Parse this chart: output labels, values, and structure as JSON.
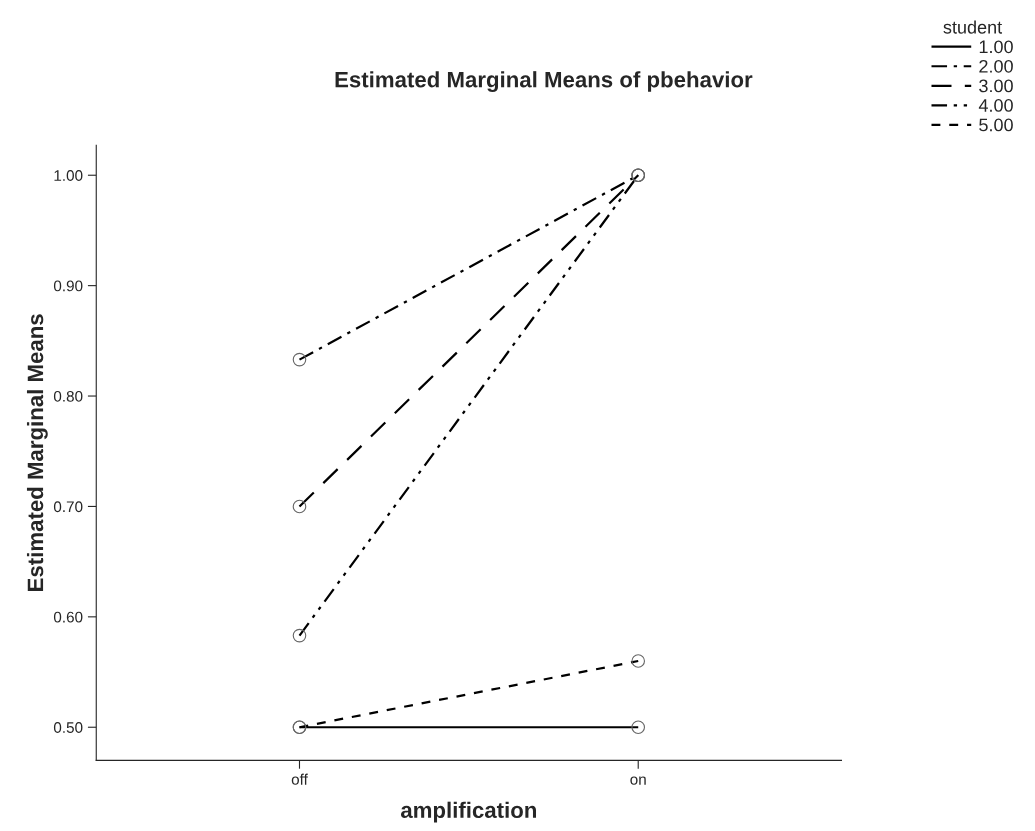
{
  "chart_data": {
    "type": "line",
    "title": "Estimated Marginal Means of pbehavior",
    "xlabel": "amplification",
    "ylabel": "Estimated Marginal Means",
    "legend_title": "student",
    "categories": [
      "off",
      "on"
    ],
    "series": [
      {
        "name": "1.00",
        "color": "#000000",
        "line_style": "solid",
        "values": [
          0.5,
          0.5
        ]
      },
      {
        "name": "2.00",
        "color": "#000000",
        "line_style": "dashdot",
        "values": [
          0.833,
          1.0
        ]
      },
      {
        "name": "3.00",
        "color": "#000000",
        "line_style": "longdash",
        "values": [
          0.7,
          1.0
        ]
      },
      {
        "name": "4.00",
        "color": "#000000",
        "line_style": "dashdotdot",
        "values": [
          0.583,
          1.0
        ]
      },
      {
        "name": "5.00",
        "color": "#000000",
        "line_style": "dashed",
        "values": [
          0.5,
          0.56
        ]
      }
    ],
    "ylim": [
      0.47,
      1.027
    ],
    "yticks": [
      {
        "value": 0.5,
        "label": "0.50"
      },
      {
        "value": 0.6,
        "label": "0.60"
      },
      {
        "value": 0.7,
        "label": "0.70"
      },
      {
        "value": 0.8,
        "label": "0.80"
      },
      {
        "value": 0.9,
        "label": "0.90"
      },
      {
        "value": 1.0,
        "label": "1.00"
      }
    ],
    "marker": "circle",
    "grid": false,
    "legend": "top right"
  }
}
